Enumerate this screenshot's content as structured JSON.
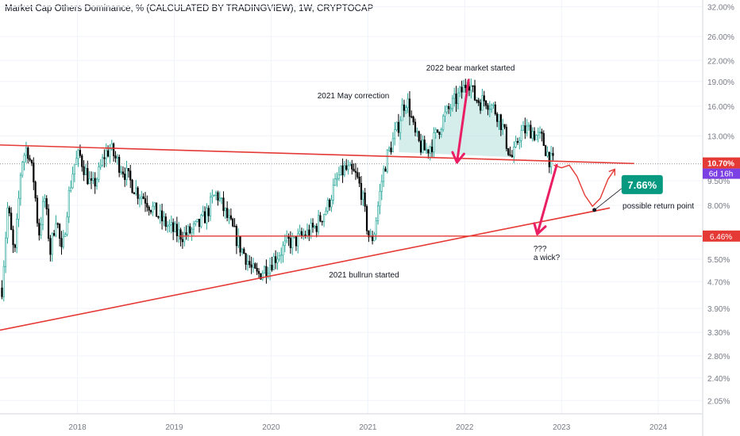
{
  "title": "Market Cap Others Dominance, % (CALCULATED BY TRADINGVIEW), 1W, CRYPTOCAP",
  "colors": {
    "up": "#26a69a",
    "down": "#000000",
    "candle_fill": "#ffffff",
    "trendline": "#e53935",
    "arrow": "#e91e63",
    "hs_fill": "#b2dfdb",
    "price_tag": "#e53935",
    "timer_tag": "#7b3fe4",
    "callout": "#089981",
    "axis_text": "#787b86",
    "grid": "#f0f3fa"
  },
  "chart_data": {
    "type": "candlestick",
    "log_scale": true,
    "ylim": [
      1.9,
      33
    ],
    "xlim": [
      2017.2,
      2024.45
    ],
    "y_ticks": [
      {
        "v": 32.0,
        "label": "32.00%"
      },
      {
        "v": 26.0,
        "label": "26.00%"
      },
      {
        "v": 22.0,
        "label": "22.00%"
      },
      {
        "v": 19.0,
        "label": "19.00%"
      },
      {
        "v": 16.0,
        "label": "16.00%"
      },
      {
        "v": 13.0,
        "label": "13.00%"
      },
      {
        "v": 9.5,
        "label": "9.50%"
      },
      {
        "v": 8.0,
        "label": "8.00%"
      },
      {
        "v": 5.5,
        "label": "5.50%"
      },
      {
        "v": 4.7,
        "label": "4.70%"
      },
      {
        "v": 3.9,
        "label": "3.90%"
      },
      {
        "v": 3.3,
        "label": "3.30%"
      },
      {
        "v": 2.8,
        "label": "2.80%"
      },
      {
        "v": 2.4,
        "label": "2.40%"
      },
      {
        "v": 2.05,
        "label": "2.05%"
      }
    ],
    "x_ticks": [
      {
        "v": 2018,
        "label": "2018"
      },
      {
        "v": 2019,
        "label": "2019"
      },
      {
        "v": 2020,
        "label": "2020"
      },
      {
        "v": 2021,
        "label": "2021"
      },
      {
        "v": 2022,
        "label": "2022"
      },
      {
        "v": 2023,
        "label": "2023"
      },
      {
        "v": 2024,
        "label": "2024"
      }
    ],
    "price_path": [
      [
        2017.22,
        4.5
      ],
      [
        2017.28,
        8.0
      ],
      [
        2017.35,
        5.5
      ],
      [
        2017.42,
        10.8
      ],
      [
        2017.48,
        12.1
      ],
      [
        2017.55,
        9.5
      ],
      [
        2017.6,
        6.5
      ],
      [
        2017.66,
        8.5
      ],
      [
        2017.72,
        5.8
      ],
      [
        2017.78,
        7.5
      ],
      [
        2017.84,
        5.6
      ],
      [
        2017.9,
        8.2
      ],
      [
        2017.96,
        10.5
      ],
      [
        2018.02,
        11.4
      ],
      [
        2018.08,
        10.2
      ],
      [
        2018.15,
        9.0
      ],
      [
        2018.22,
        10.0
      ],
      [
        2018.28,
        11.4
      ],
      [
        2018.34,
        11.9
      ],
      [
        2018.4,
        11.0
      ],
      [
        2018.48,
        10.2
      ],
      [
        2018.55,
        9.4
      ],
      [
        2018.62,
        8.8
      ],
      [
        2018.7,
        8.4
      ],
      [
        2018.78,
        7.8
      ],
      [
        2018.86,
        7.3
      ],
      [
        2018.94,
        6.9
      ],
      [
        2019.02,
        6.6
      ],
      [
        2019.1,
        6.5
      ],
      [
        2019.18,
        6.7
      ],
      [
        2019.26,
        7.0
      ],
      [
        2019.34,
        7.6
      ],
      [
        2019.4,
        8.4
      ],
      [
        2019.44,
        8.7
      ],
      [
        2019.5,
        7.9
      ],
      [
        2019.56,
        7.2
      ],
      [
        2019.62,
        6.6
      ],
      [
        2019.68,
        6.0
      ],
      [
        2019.74,
        5.6
      ],
      [
        2019.8,
        5.1
      ],
      [
        2019.86,
        4.9
      ],
      [
        2019.92,
        5.1
      ],
      [
        2019.98,
        5.3
      ],
      [
        2020.05,
        5.6
      ],
      [
        2020.12,
        5.9
      ],
      [
        2020.18,
        6.2
      ],
      [
        2020.24,
        6.2
      ],
      [
        2020.3,
        6.4
      ],
      [
        2020.38,
        6.6
      ],
      [
        2020.46,
        6.9
      ],
      [
        2020.52,
        7.4
      ],
      [
        2020.58,
        7.9
      ],
      [
        2020.64,
        8.9
      ],
      [
        2020.7,
        9.8
      ],
      [
        2020.76,
        10.3
      ],
      [
        2020.82,
        10.1
      ],
      [
        2020.88,
        9.8
      ],
      [
        2020.94,
        8.7
      ],
      [
        2020.98,
        7.2
      ],
      [
        2021.02,
        6.2
      ],
      [
        2021.06,
        6.5
      ],
      [
        2021.1,
        7.8
      ],
      [
        2021.15,
        9.8
      ],
      [
        2021.2,
        11.3
      ],
      [
        2021.26,
        12.6
      ],
      [
        2021.32,
        14.2
      ],
      [
        2021.36,
        16.0
      ],
      [
        2021.4,
        16.8
      ],
      [
        2021.44,
        15.2
      ],
      [
        2021.48,
        13.2
      ],
      [
        2021.54,
        12.1
      ],
      [
        2021.6,
        11.7
      ],
      [
        2021.66,
        12.3
      ],
      [
        2021.72,
        13.4
      ],
      [
        2021.78,
        14.7
      ],
      [
        2021.84,
        15.7
      ],
      [
        2021.9,
        16.6
      ],
      [
        2021.96,
        17.6
      ],
      [
        2022.0,
        18.3
      ],
      [
        2022.03,
        19.5
      ],
      [
        2022.06,
        18.6
      ],
      [
        2022.1,
        17.0
      ],
      [
        2022.16,
        16.5
      ],
      [
        2022.22,
        16.8
      ],
      [
        2022.28,
        16.0
      ],
      [
        2022.34,
        15.2
      ],
      [
        2022.4,
        13.6
      ],
      [
        2022.44,
        12.1
      ],
      [
        2022.48,
        11.1
      ],
      [
        2022.52,
        11.6
      ],
      [
        2022.56,
        13.1
      ],
      [
        2022.62,
        13.5
      ],
      [
        2022.68,
        13.6
      ],
      [
        2022.74,
        13.0
      ],
      [
        2022.8,
        12.7
      ],
      [
        2022.84,
        11.8
      ],
      [
        2022.88,
        11.0
      ],
      [
        2022.92,
        10.7
      ]
    ],
    "lines": {
      "upper_trendline": [
        [
          2017.2,
          12.2
        ],
        [
          2023.75,
          10.72
        ]
      ],
      "lower_trendline": [
        [
          2017.2,
          3.35
        ],
        [
          2023.5,
          7.86
        ]
      ],
      "horizontal_support": {
        "y": 6.46,
        "x0": 2019.05
      },
      "dotted_current": {
        "y": 10.7,
        "x0": 2017.2
      }
    },
    "annotations": {
      "bear": "2022 bear market started",
      "may": "2021 May correction",
      "bullrun": "2021 bullrun started",
      "wick_q": "???",
      "wick": "a wick?",
      "return_value": "7.66%",
      "return_label": "possible return point"
    },
    "price_tag": {
      "value": 10.7,
      "label": "10.70%",
      "timer": "6d 16h"
    },
    "support_tag": {
      "value": 6.46,
      "label": "6.46%"
    }
  }
}
